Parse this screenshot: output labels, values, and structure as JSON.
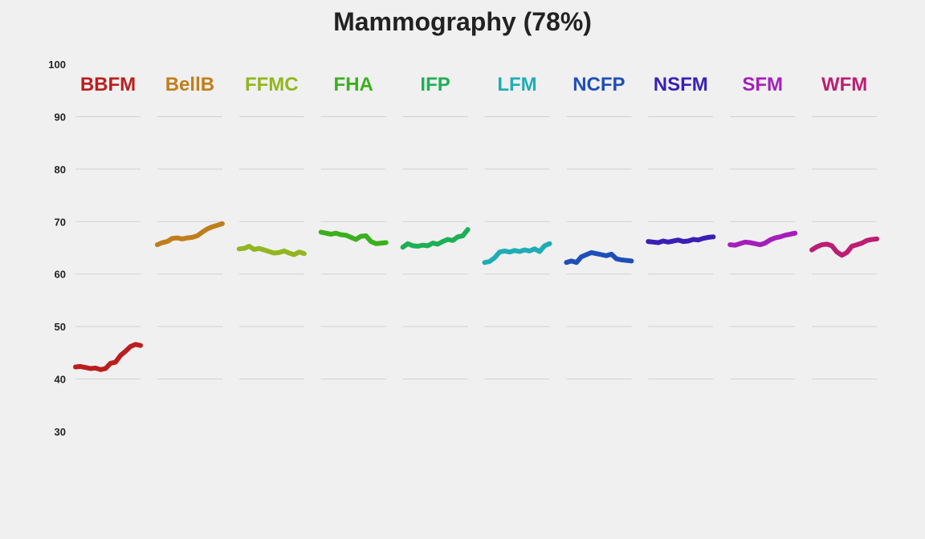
{
  "chart_data": {
    "type": "line",
    "title": "Mammography (78%)",
    "ylim": [
      30,
      100
    ],
    "yticks": [
      30,
      40,
      50,
      60,
      70,
      80,
      90,
      100
    ],
    "grid": true,
    "legend": "none",
    "series": [
      {
        "name": "BBFM",
        "color": "#bb1e1e",
        "values": [
          42.3,
          42.4,
          42.2,
          42.0,
          42.1,
          41.8,
          42.0,
          43.0,
          43.2,
          44.5,
          45.3,
          46.2,
          46.6,
          46.4
        ]
      },
      {
        "name": "BellB",
        "color": "#c07e1b",
        "values": [
          65.6,
          66.0,
          66.2,
          66.8,
          66.9,
          66.7,
          66.9,
          67.0,
          67.3,
          68.0,
          68.6,
          69.0,
          69.3,
          69.6
        ]
      },
      {
        "name": "FFMC",
        "color": "#93b51f",
        "values": [
          64.8,
          64.9,
          65.3,
          64.7,
          64.9,
          64.6,
          64.3,
          64.0,
          64.1,
          64.4,
          64.0,
          63.7,
          64.2,
          63.9
        ]
      },
      {
        "name": "FHA",
        "color": "#3ab01e",
        "values": [
          68.0,
          67.8,
          67.6,
          67.8,
          67.5,
          67.4,
          67.0,
          66.6,
          67.2,
          67.3,
          66.2,
          65.8,
          65.9,
          66.0
        ]
      },
      {
        "name": "IFP",
        "color": "#1eaf55",
        "values": [
          65.1,
          65.8,
          65.4,
          65.3,
          65.5,
          65.4,
          65.9,
          65.7,
          66.2,
          66.6,
          66.4,
          67.1,
          67.3,
          68.5
        ]
      },
      {
        "name": "LFM",
        "color": "#1fadb5",
        "values": [
          62.2,
          62.4,
          63.1,
          64.2,
          64.4,
          64.2,
          64.5,
          64.3,
          64.6,
          64.4,
          64.8,
          64.3,
          65.4,
          65.8
        ]
      },
      {
        "name": "NCFP",
        "color": "#1e4fb8",
        "values": [
          62.2,
          62.5,
          62.2,
          63.3,
          63.7,
          64.1,
          63.9,
          63.7,
          63.5,
          63.8,
          62.9,
          62.7,
          62.6,
          62.5
        ]
      },
      {
        "name": "NSFM",
        "color": "#3a1eb5",
        "values": [
          66.2,
          66.1,
          66.0,
          66.3,
          66.1,
          66.3,
          66.5,
          66.2,
          66.3,
          66.6,
          66.5,
          66.8,
          67.0,
          67.1
        ]
      },
      {
        "name": "SFM",
        "color": "#a51ebb",
        "values": [
          65.6,
          65.5,
          65.8,
          66.1,
          66.0,
          65.8,
          65.6,
          65.9,
          66.5,
          66.9,
          67.1,
          67.4,
          67.6,
          67.8
        ]
      },
      {
        "name": "WFM",
        "color": "#bb1e72",
        "values": [
          64.6,
          65.2,
          65.6,
          65.7,
          65.4,
          64.2,
          63.6,
          64.1,
          65.3,
          65.6,
          65.9,
          66.4,
          66.6,
          66.7
        ]
      }
    ]
  }
}
